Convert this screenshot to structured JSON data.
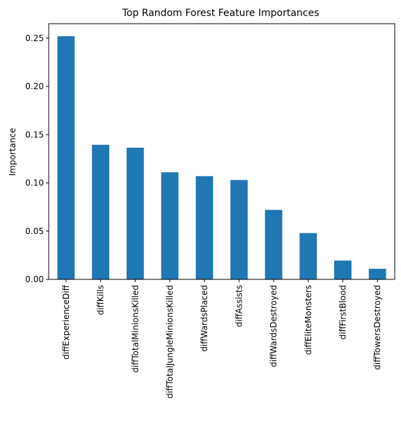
{
  "chart_data": {
    "type": "bar",
    "title": "Top Random Forest Feature Importances",
    "xlabel": "",
    "ylabel": "Importance",
    "categories": [
      "diffExperienceDiff",
      "diffKills",
      "diffTotalMinionsKilled",
      "diffTotalJungleMinionsKilled",
      "diffWardsPlaced",
      "diffAssists",
      "diffWardsDestroyed",
      "diffEliteMonsters",
      "diffFirstBlood",
      "diffTowersDestroyed"
    ],
    "values": [
      0.252,
      0.1395,
      0.1365,
      0.111,
      0.107,
      0.103,
      0.072,
      0.048,
      0.0195,
      0.011
    ],
    "ylim": [
      0,
      0.265
    ],
    "yticks": [
      0.0,
      0.05,
      0.1,
      0.15,
      0.2,
      0.25
    ],
    "ytick_labels": [
      "0.00",
      "0.05",
      "0.10",
      "0.15",
      "0.20",
      "0.25"
    ],
    "bar_color": "#1f77b4",
    "grid": false,
    "legend": "none"
  }
}
